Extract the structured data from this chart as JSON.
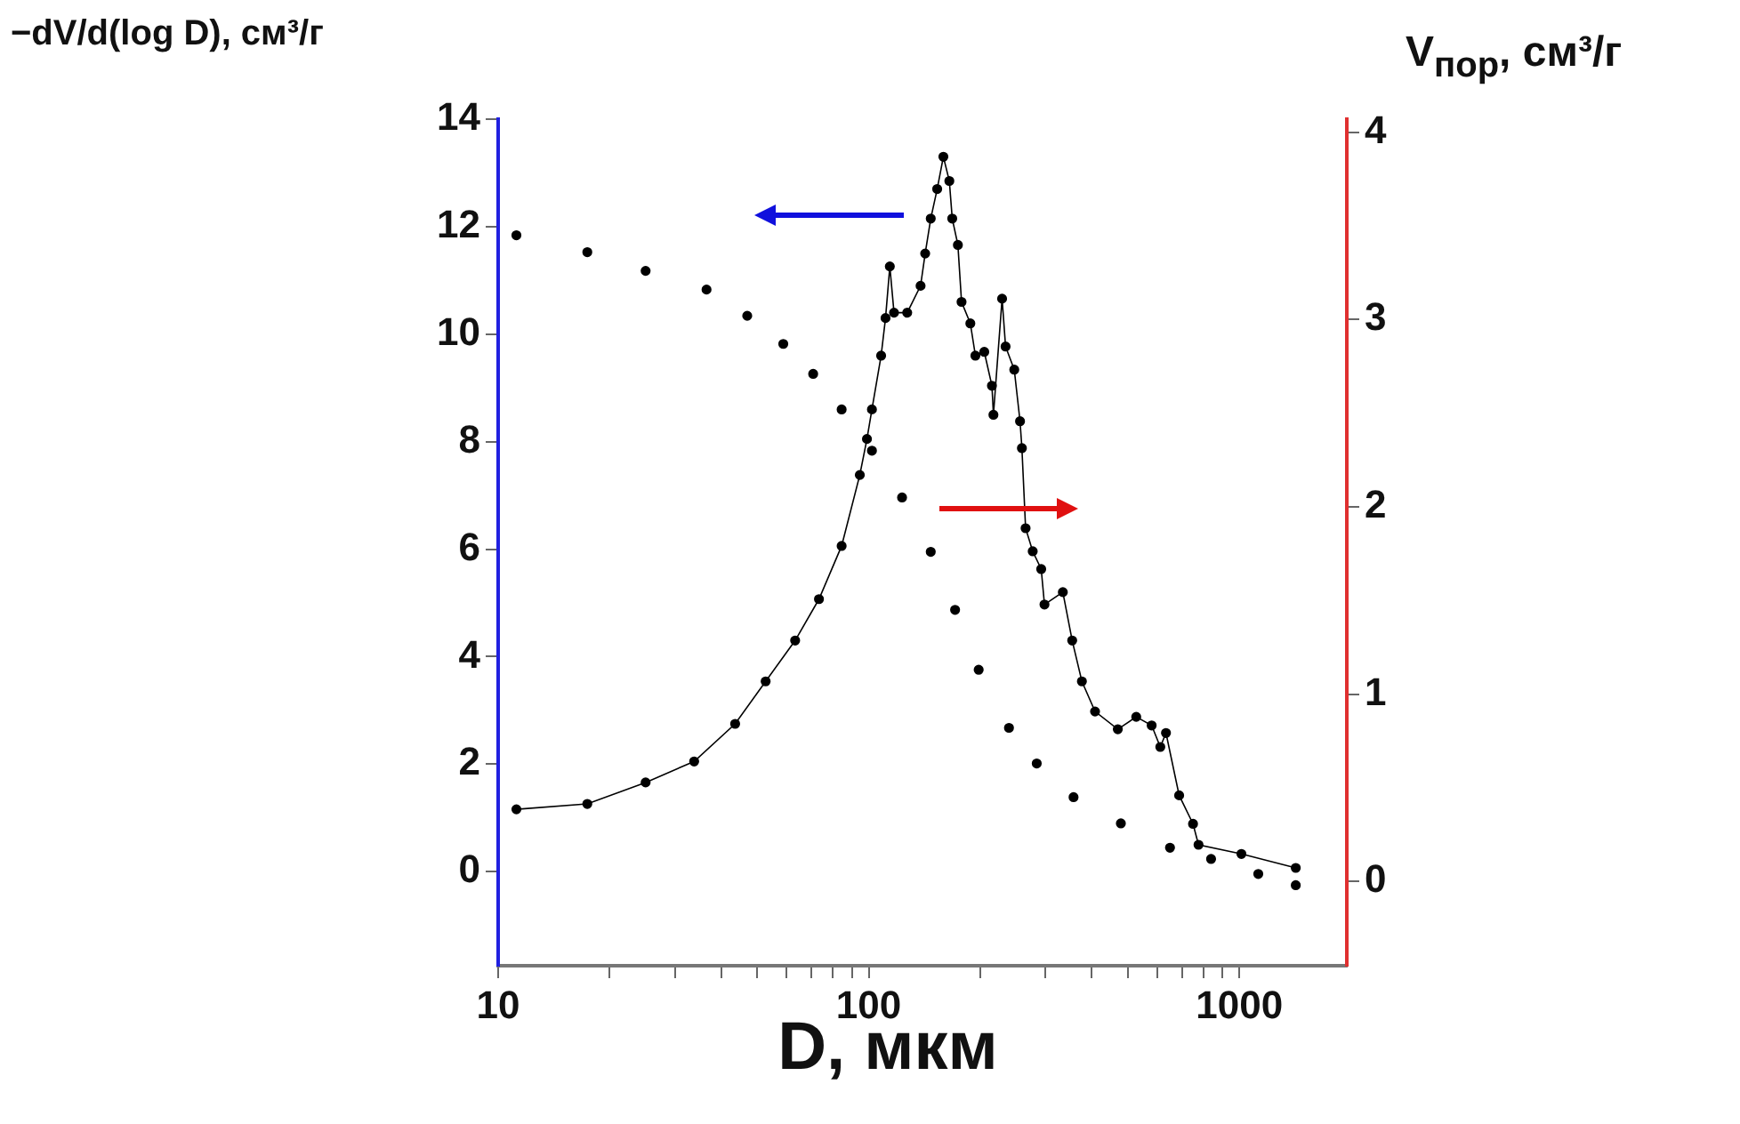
{
  "chart_data": {
    "type": "line",
    "xlabel": "D, мкм",
    "ylabel": "−dV/d(log D), см³/г",
    "y2label": "V$_{пор}$, см³/г",
    "log": "x",
    "grid": false,
    "marker": "circle",
    "xlim": [
      10,
      1950
    ],
    "xticks": [
      10,
      {
        "value": 20,
        "label": null
      },
      {
        "value": 30,
        "label": null
      },
      {
        "value": 40,
        "label": null
      },
      {
        "value": 50,
        "label": null
      },
      {
        "value": 60,
        "label": null
      },
      {
        "value": 70,
        "label": null
      },
      {
        "value": 80,
        "label": null
      },
      {
        "value": 90,
        "label": null
      },
      100,
      {
        "value": 200,
        "label": null
      },
      {
        "value": 300,
        "label": null
      },
      {
        "value": 400,
        "label": null
      },
      {
        "value": 500,
        "label": null
      },
      {
        "value": 600,
        "label": null
      },
      {
        "value": 700,
        "label": null
      },
      {
        "value": 800,
        "label": null
      },
      {
        "value": 900,
        "label": null
      },
      1000
    ],
    "ylim": [
      -1.75,
      14
    ],
    "yticks": [
      0,
      2,
      4,
      6,
      8,
      10,
      12,
      14
    ],
    "y2lim": [
      -0.45,
      4.07
    ],
    "y2ticks": [
      0,
      1,
      2,
      3,
      4
    ],
    "series": [
      {
        "color": "#000000",
        "x": [
          11.2,
          17.4,
          25,
          33.8,
          43.6,
          52.7,
          63.3,
          73.4,
          84.5,
          94.6,
          98.9,
          102,
          108,
          111,
          114,
          117,
          127,
          138,
          142,
          147,
          153,
          159,
          165,
          168,
          174,
          178,
          188,
          194,
          205,
          215,
          217,
          229,
          234,
          247,
          256,
          259,
          265,
          277,
          292,
          298,
          334,
          354,
          376,
          408,
          470,
          527,
          580,
          612,
          634,
          688,
          750,
          776,
          1013,
          1420
        ],
        "values": [
          1.16,
          1.26,
          1.66,
          2.05,
          2.75,
          3.54,
          4.3,
          5.07,
          6.06,
          7.38,
          8.05,
          8.6,
          9.6,
          10.3,
          11.26,
          10.4,
          10.4,
          10.9,
          11.5,
          12.15,
          12.7,
          13.3,
          12.85,
          12.15,
          11.66,
          10.6,
          10.2,
          9.6,
          9.67,
          9.04,
          8.5,
          10.66,
          9.77,
          9.34,
          8.38,
          7.88,
          6.39,
          5.96,
          5.63,
          4.97,
          5.2,
          4.3,
          3.54,
          2.98,
          2.65,
          2.88,
          2.72,
          2.32,
          2.58,
          1.42,
          0.89,
          0.5,
          0.33,
          0.07
        ]
      },
      {
        "type": "scatter",
        "axis": "y2",
        "color": "#000000",
        "x": [
          11.2,
          17.4,
          25,
          36.5,
          47,
          58.8,
          70.8,
          84.5,
          102,
          123,
          147,
          171,
          198,
          239,
          284,
          357,
          479,
          650,
          839,
          1125,
          1420
        ],
        "values": [
          3.45,
          3.36,
          3.26,
          3.16,
          3.02,
          2.87,
          2.71,
          2.52,
          2.3,
          2.05,
          1.76,
          1.45,
          1.13,
          0.82,
          0.63,
          0.45,
          0.31,
          0.18,
          0.12,
          0.04,
          -0.02
        ]
      }
    ]
  }
}
